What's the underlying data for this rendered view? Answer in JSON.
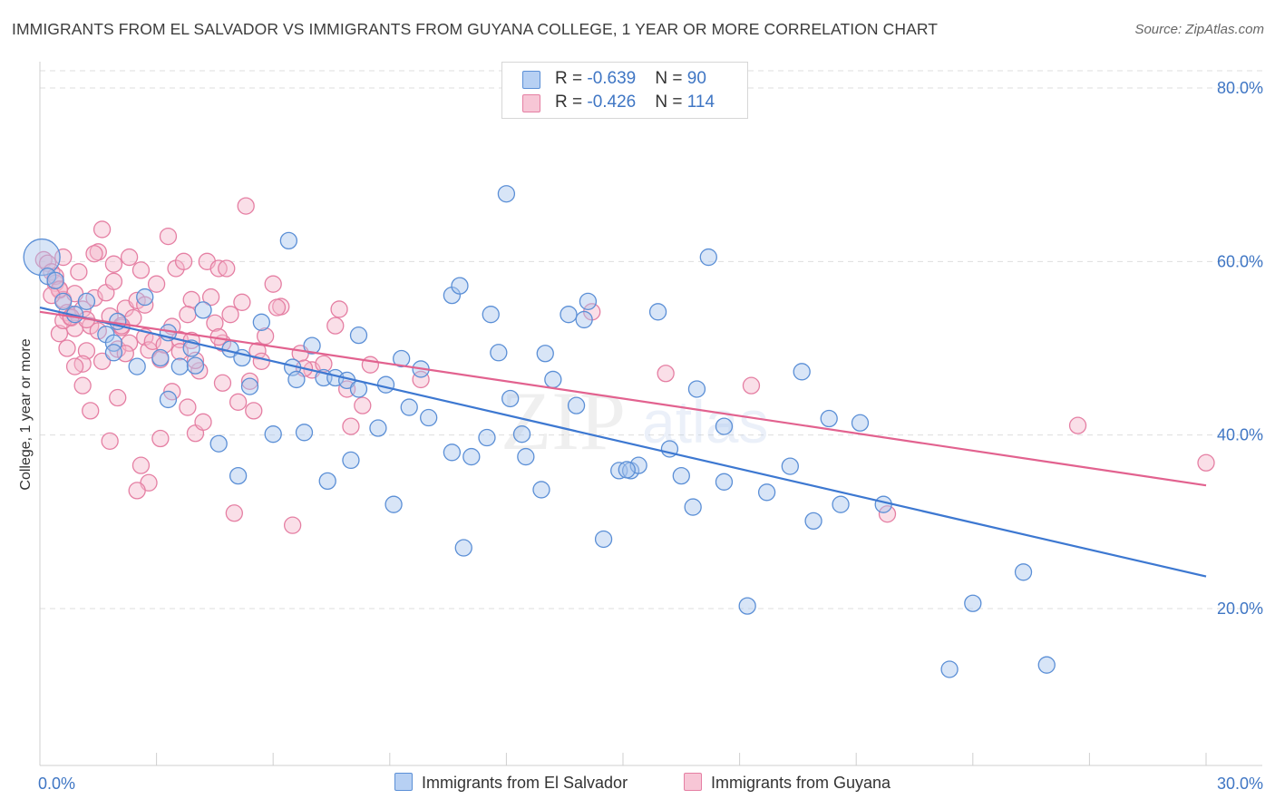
{
  "header": {
    "title": "IMMIGRANTS FROM EL SALVADOR VS IMMIGRANTS FROM GUYANA COLLEGE, 1 YEAR OR MORE CORRELATION CHART",
    "source": "Source: ZipAtlas.com"
  },
  "watermark": {
    "zip": "ZIP",
    "atlas": "atlas"
  },
  "colors": {
    "blue_fill": "#a9c6ee",
    "blue_stroke": "#5b8fd6",
    "blue_line": "#3d78d1",
    "pink_fill": "#f4b8cc",
    "pink_stroke": "#e57fa3",
    "pink_line": "#e2628f",
    "axis_label": "#3f76c4",
    "grid": "#dedede"
  },
  "legend": {
    "rows": [
      {
        "r_label": "R = ",
        "r_value": "-0.639",
        "n_label": "N = ",
        "n_value": "90"
      },
      {
        "r_label": "R = ",
        "r_value": "-0.426",
        "n_label": "N = ",
        "n_value": "114"
      }
    ]
  },
  "bottom_legend": {
    "el_salvador": "Immigrants from El Salvador",
    "guyana": "Immigrants from Guyana"
  },
  "chart_data": {
    "type": "scatter",
    "title": "IMMIGRANTS FROM EL SALVADOR VS IMMIGRANTS FROM GUYANA COLLEGE, 1 YEAR OR MORE CORRELATION CHART",
    "xlabel": "",
    "ylabel": "College, 1 year or more",
    "xlim": [
      0,
      30
    ],
    "ylim": [
      0,
      82
    ],
    "x_tick_labels": [
      {
        "value": 0,
        "label": "0.0%"
      },
      {
        "value": 30,
        "label": "30.0%"
      }
    ],
    "y_tick_labels": [
      {
        "value": 20,
        "label": "20.0%"
      },
      {
        "value": 40,
        "label": "40.0%"
      },
      {
        "value": 60,
        "label": "60.0%"
      },
      {
        "value": 80,
        "label": "80.0%"
      }
    ],
    "x_minor_ticks": [
      3,
      6,
      9,
      12,
      15,
      18,
      21,
      24,
      27,
      30
    ],
    "grid": true,
    "series": [
      {
        "name": "Immigrants from El Salvador",
        "color": "blue",
        "r": -0.639,
        "n": 90,
        "trend": {
          "x": [
            0,
            30
          ],
          "y": [
            54.7,
            23.7
          ]
        },
        "points": [
          [
            0.05,
            60.5,
            "L"
          ],
          [
            0.2,
            58.3
          ],
          [
            0.4,
            57.8
          ],
          [
            0.6,
            55.4
          ],
          [
            0.9,
            53.9
          ],
          [
            1.2,
            55.4
          ],
          [
            1.7,
            51.6
          ],
          [
            2.0,
            53.1
          ],
          [
            1.9,
            50.6
          ],
          [
            1.9,
            49.5
          ],
          [
            2.5,
            47.9
          ],
          [
            2.7,
            55.9
          ],
          [
            3.3,
            51.8
          ],
          [
            3.1,
            48.9
          ],
          [
            3.3,
            44.1
          ],
          [
            3.6,
            47.9
          ],
          [
            3.9,
            50.0
          ],
          [
            4.0,
            48.0
          ],
          [
            4.2,
            54.4
          ],
          [
            4.6,
            39.0
          ],
          [
            4.9,
            49.9
          ],
          [
            5.1,
            35.3
          ],
          [
            5.2,
            48.9
          ],
          [
            5.4,
            45.6
          ],
          [
            5.7,
            53.0
          ],
          [
            6.0,
            40.1
          ],
          [
            6.5,
            47.8
          ],
          [
            6.4,
            62.4
          ],
          [
            6.6,
            46.4
          ],
          [
            6.8,
            40.3
          ],
          [
            7.0,
            50.3
          ],
          [
            7.4,
            34.7
          ],
          [
            7.3,
            46.6
          ],
          [
            7.6,
            46.6
          ],
          [
            7.9,
            46.3
          ],
          [
            8.0,
            37.1
          ],
          [
            8.2,
            45.3
          ],
          [
            8.2,
            51.5
          ],
          [
            8.7,
            40.8
          ],
          [
            9.1,
            32.0
          ],
          [
            9.3,
            48.8
          ],
          [
            9.5,
            43.2
          ],
          [
            9.8,
            47.6
          ],
          [
            10.0,
            42.0
          ],
          [
            10.6,
            56.1
          ],
          [
            10.8,
            57.2
          ],
          [
            10.6,
            38.0
          ],
          [
            10.9,
            27.0
          ],
          [
            11.1,
            37.5
          ],
          [
            11.5,
            39.7
          ],
          [
            11.6,
            53.9
          ],
          [
            11.8,
            49.5
          ],
          [
            12.0,
            67.8
          ],
          [
            12.1,
            44.2
          ],
          [
            12.4,
            40.1
          ],
          [
            12.5,
            37.5
          ],
          [
            12.9,
            33.7
          ],
          [
            13.0,
            49.4
          ],
          [
            13.2,
            46.4
          ],
          [
            13.6,
            53.9
          ],
          [
            13.8,
            43.4
          ],
          [
            14.0,
            53.3
          ],
          [
            14.1,
            55.4
          ],
          [
            14.5,
            28.0
          ],
          [
            14.9,
            35.9
          ],
          [
            15.2,
            35.9
          ],
          [
            15.4,
            36.5
          ],
          [
            15.9,
            54.2
          ],
          [
            16.2,
            38.4
          ],
          [
            16.5,
            35.3
          ],
          [
            16.8,
            31.7
          ],
          [
            16.9,
            45.3
          ],
          [
            17.2,
            60.5
          ],
          [
            17.6,
            41.0
          ],
          [
            17.6,
            34.6
          ],
          [
            18.2,
            20.3
          ],
          [
            18.7,
            33.4
          ],
          [
            19.3,
            36.4
          ],
          [
            19.6,
            47.3
          ],
          [
            19.9,
            30.1
          ],
          [
            20.3,
            41.9
          ],
          [
            20.6,
            32.0
          ],
          [
            21.1,
            41.4
          ],
          [
            21.7,
            32.0
          ],
          [
            23.4,
            13.0
          ],
          [
            24.0,
            20.6
          ],
          [
            25.3,
            24.2
          ],
          [
            25.9,
            13.5
          ],
          [
            15.1,
            36.0
          ],
          [
            8.9,
            45.8
          ]
        ]
      },
      {
        "name": "Immigrants from Guyana",
        "color": "pink",
        "r": -0.426,
        "n": 114,
        "trend": {
          "x": [
            0,
            30
          ],
          "y": [
            54.2,
            34.2
          ]
        },
        "points": [
          [
            0.1,
            60.2
          ],
          [
            0.2,
            59.8
          ],
          [
            0.3,
            58.8
          ],
          [
            0.4,
            57.5
          ],
          [
            0.5,
            56.7
          ],
          [
            0.6,
            55.6
          ],
          [
            0.7,
            54.1
          ],
          [
            0.8,
            53.5
          ],
          [
            0.9,
            52.3
          ],
          [
            0.5,
            51.7
          ],
          [
            0.6,
            53.2
          ],
          [
            0.7,
            50.0
          ],
          [
            0.9,
            56.3
          ],
          [
            1.0,
            58.8
          ],
          [
            1.1,
            54.5
          ],
          [
            1.2,
            49.7
          ],
          [
            1.3,
            52.6
          ],
          [
            1.4,
            55.8
          ],
          [
            1.5,
            61.1
          ],
          [
            1.6,
            63.7
          ],
          [
            1.7,
            56.4
          ],
          [
            1.8,
            53.7
          ],
          [
            1.9,
            57.7
          ],
          [
            2.0,
            49.9
          ],
          [
            2.1,
            52.4
          ],
          [
            2.2,
            54.6
          ],
          [
            2.3,
            50.6
          ],
          [
            2.4,
            53.5
          ],
          [
            2.5,
            55.5
          ],
          [
            2.6,
            59.0
          ],
          [
            2.7,
            51.3
          ],
          [
            2.8,
            49.8
          ],
          [
            2.9,
            50.8
          ],
          [
            3.0,
            57.4
          ],
          [
            3.1,
            48.7
          ],
          [
            3.2,
            50.4
          ],
          [
            3.3,
            62.9
          ],
          [
            3.4,
            52.5
          ],
          [
            3.5,
            59.2
          ],
          [
            3.6,
            51.0
          ],
          [
            3.7,
            60.0
          ],
          [
            3.8,
            43.2
          ],
          [
            3.9,
            50.9
          ],
          [
            4.0,
            40.2
          ],
          [
            4.1,
            47.4
          ],
          [
            4.2,
            41.5
          ],
          [
            4.3,
            60.0
          ],
          [
            4.4,
            55.9
          ],
          [
            4.5,
            52.9
          ],
          [
            4.6,
            59.2
          ],
          [
            4.7,
            50.6
          ],
          [
            4.8,
            59.2
          ],
          [
            4.9,
            53.9
          ],
          [
            5.0,
            31.0
          ],
          [
            5.1,
            43.8
          ],
          [
            5.2,
            55.3
          ],
          [
            5.3,
            66.4
          ],
          [
            5.4,
            46.2
          ],
          [
            5.6,
            49.7
          ],
          [
            5.8,
            51.4
          ],
          [
            6.0,
            57.4
          ],
          [
            6.2,
            54.8
          ],
          [
            6.5,
            29.6
          ],
          [
            6.7,
            49.4
          ],
          [
            7.0,
            47.5
          ],
          [
            7.3,
            48.2
          ],
          [
            7.6,
            52.6
          ],
          [
            7.7,
            54.5
          ],
          [
            8.0,
            41.0
          ],
          [
            8.3,
            43.4
          ],
          [
            8.5,
            48.1
          ],
          [
            1.6,
            48.5
          ],
          [
            1.8,
            39.3
          ],
          [
            2.0,
            44.3
          ],
          [
            1.1,
            45.7
          ],
          [
            1.3,
            42.8
          ],
          [
            2.6,
            36.5
          ],
          [
            2.8,
            34.5
          ],
          [
            2.5,
            33.6
          ],
          [
            3.1,
            39.6
          ],
          [
            3.4,
            45.0
          ],
          [
            4.0,
            48.6
          ],
          [
            1.1,
            48.2
          ],
          [
            0.8,
            53.6
          ],
          [
            1.5,
            52.0
          ],
          [
            2.1,
            52.6
          ],
          [
            0.4,
            58.3
          ],
          [
            0.6,
            60.5
          ],
          [
            0.5,
            56.8
          ],
          [
            1.9,
            59.7
          ],
          [
            2.3,
            60.5
          ],
          [
            3.9,
            55.6
          ],
          [
            4.6,
            51.3
          ],
          [
            5.7,
            48.5
          ],
          [
            6.1,
            54.7
          ],
          [
            6.8,
            47.7
          ],
          [
            7.9,
            45.3
          ],
          [
            9.8,
            46.4
          ],
          [
            14.2,
            54.2
          ],
          [
            16.1,
            47.1
          ],
          [
            18.3,
            45.7
          ],
          [
            21.8,
            30.9
          ],
          [
            26.7,
            41.1
          ],
          [
            30.0,
            36.8
          ],
          [
            0.3,
            56.1
          ],
          [
            1.2,
            53.3
          ],
          [
            2.7,
            55.0
          ],
          [
            3.6,
            49.6
          ],
          [
            4.7,
            46.0
          ],
          [
            5.5,
            42.8
          ],
          [
            0.9,
            47.9
          ],
          [
            1.4,
            60.9
          ],
          [
            3.8,
            53.9
          ],
          [
            2.2,
            49.4
          ]
        ]
      }
    ]
  }
}
